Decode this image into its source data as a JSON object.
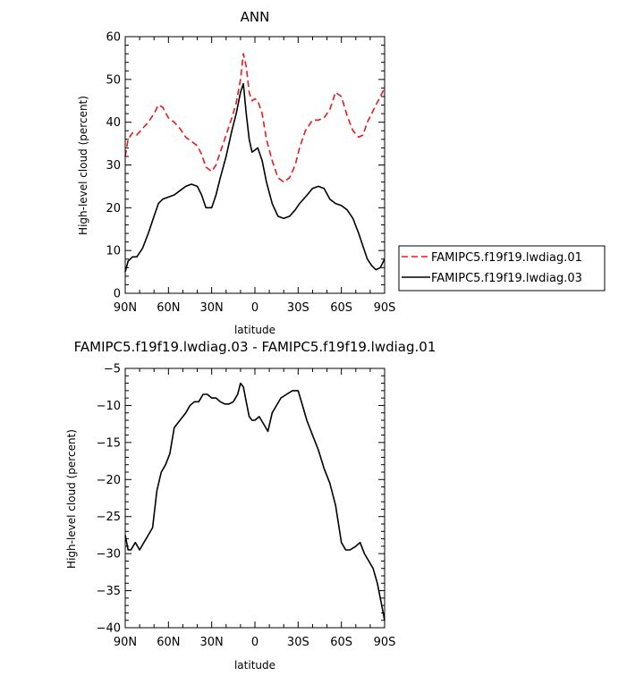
{
  "chart_data": [
    {
      "type": "line",
      "title": "ANN",
      "xlabel": "latitude",
      "ylabel": "High-level cloud (percent)",
      "xlim": [
        90,
        -90
      ],
      "ylim": [
        0,
        60
      ],
      "yticks": [
        0,
        10,
        20,
        30,
        40,
        50,
        60
      ],
      "xticks": [
        {
          "value": 90,
          "label": "90N"
        },
        {
          "value": 60,
          "label": "60N"
        },
        {
          "value": 30,
          "label": "30N"
        },
        {
          "value": 0,
          "label": "0"
        },
        {
          "value": -30,
          "label": "30S"
        },
        {
          "value": -60,
          "label": "60S"
        },
        {
          "value": -90,
          "label": "90S"
        }
      ],
      "legend_position": "right",
      "grid": false,
      "series": [
        {
          "name": "FAMIPC5.f19f19.lwdiag.01",
          "color": "#e8191a",
          "dash": "dashed",
          "x": [
            90,
            88,
            85,
            82,
            78,
            74,
            70,
            67,
            64,
            60,
            56,
            52,
            48,
            44,
            40,
            37,
            34,
            30,
            27,
            24,
            20,
            16,
            13,
            10,
            8,
            6,
            4,
            2,
            0,
            -2,
            -5,
            -8,
            -12,
            -16,
            -20,
            -24,
            -28,
            -31,
            -35,
            -40,
            -44,
            -48,
            -52,
            -56,
            -60,
            -64,
            -68,
            -72,
            -75,
            -78,
            -81,
            -84,
            -87,
            -90
          ],
          "y": [
            32,
            36,
            37.5,
            37,
            38.5,
            40,
            42,
            44,
            43.5,
            41,
            40,
            38.5,
            36.5,
            35.5,
            34.5,
            32.5,
            29.5,
            28.5,
            30,
            33,
            37,
            41,
            44.5,
            50,
            56,
            53,
            47,
            45,
            45.5,
            45,
            42,
            36,
            31,
            27,
            26,
            27,
            30,
            34,
            38,
            40.5,
            40.5,
            41,
            43,
            47,
            46,
            41.5,
            38,
            36.5,
            37,
            40,
            42,
            44,
            46,
            48
          ]
        },
        {
          "name": "FAMIPC5.f19f19.lwdiag.03",
          "color": "#000000",
          "dash": "solid",
          "x": [
            90,
            88,
            85,
            82,
            78,
            74,
            70,
            67,
            64,
            60,
            56,
            52,
            48,
            44,
            40,
            37,
            34,
            30,
            27,
            24,
            20,
            16,
            13,
            10,
            8,
            6,
            4,
            2,
            0,
            -2,
            -5,
            -8,
            -12,
            -16,
            -20,
            -24,
            -28,
            -31,
            -35,
            -40,
            -44,
            -48,
            -52,
            -56,
            -60,
            -64,
            -68,
            -72,
            -75,
            -78,
            -81,
            -84,
            -87,
            -90
          ],
          "y": [
            5,
            7.5,
            8.5,
            8.5,
            10.5,
            14,
            18,
            21,
            22,
            22.5,
            23,
            24,
            25,
            25.5,
            25,
            23,
            20,
            20,
            23,
            27,
            32,
            38,
            42,
            47,
            49,
            42,
            36,
            33,
            33.5,
            34,
            31,
            26,
            21,
            18,
            17.5,
            18,
            19.5,
            21,
            22.5,
            24.5,
            25,
            24.5,
            22,
            21,
            20.5,
            19.5,
            17.5,
            14,
            11,
            8,
            6.5,
            5.5,
            6,
            8
          ]
        }
      ]
    },
    {
      "type": "line",
      "title": "FAMIPC5.f19f19.lwdiag.03 - FAMIPC5.f19f19.lwdiag.01",
      "xlabel": "latitude",
      "ylabel": "High-level cloud (percent)",
      "xlim": [
        90,
        -90
      ],
      "ylim": [
        -40,
        -5
      ],
      "yticks": [
        -40,
        -35,
        -30,
        -25,
        -20,
        -15,
        -10,
        -5
      ],
      "xticks": [
        {
          "value": 90,
          "label": "90N"
        },
        {
          "value": 60,
          "label": "60N"
        },
        {
          "value": 30,
          "label": "30N"
        },
        {
          "value": 0,
          "label": "0"
        },
        {
          "value": -30,
          "label": "30S"
        },
        {
          "value": -60,
          "label": "60S"
        },
        {
          "value": -90,
          "label": "90S"
        }
      ],
      "grid": false,
      "series": [
        {
          "color": "#000000",
          "dash": "solid",
          "x": [
            90,
            88,
            86,
            83,
            80,
            77,
            74,
            71,
            68,
            65,
            62,
            59,
            56,
            52,
            48,
            45,
            42,
            39,
            36,
            33,
            30,
            27,
            24,
            21,
            18,
            15,
            12,
            10,
            8,
            6,
            4,
            2,
            0,
            -3,
            -6,
            -9,
            -12,
            -15,
            -18,
            -22,
            -26,
            -30,
            -33,
            -36,
            -40,
            -44,
            -48,
            -52,
            -56,
            -60,
            -63,
            -66,
            -70,
            -73,
            -76,
            -79,
            -82,
            -85,
            -88,
            -90
          ],
          "y": [
            -27.5,
            -29.5,
            -29.5,
            -28.5,
            -29.5,
            -28.5,
            -27.5,
            -26.5,
            -21.5,
            -19,
            -18,
            -16.5,
            -13,
            -12,
            -11,
            -10,
            -9.5,
            -9.5,
            -8.5,
            -8.5,
            -9,
            -9,
            -9.5,
            -9.8,
            -9.8,
            -9.5,
            -8.5,
            -7,
            -7.5,
            -9.5,
            -11.5,
            -12,
            -12,
            -11.5,
            -12.5,
            -13.5,
            -11,
            -10,
            -9,
            -8.5,
            -8,
            -8,
            -10,
            -12,
            -14,
            -16,
            -18.5,
            -20.5,
            -23.5,
            -28.5,
            -29.5,
            -29.5,
            -29,
            -28.5,
            -30,
            -31,
            -32,
            -34,
            -37,
            -39
          ]
        }
      ]
    }
  ]
}
